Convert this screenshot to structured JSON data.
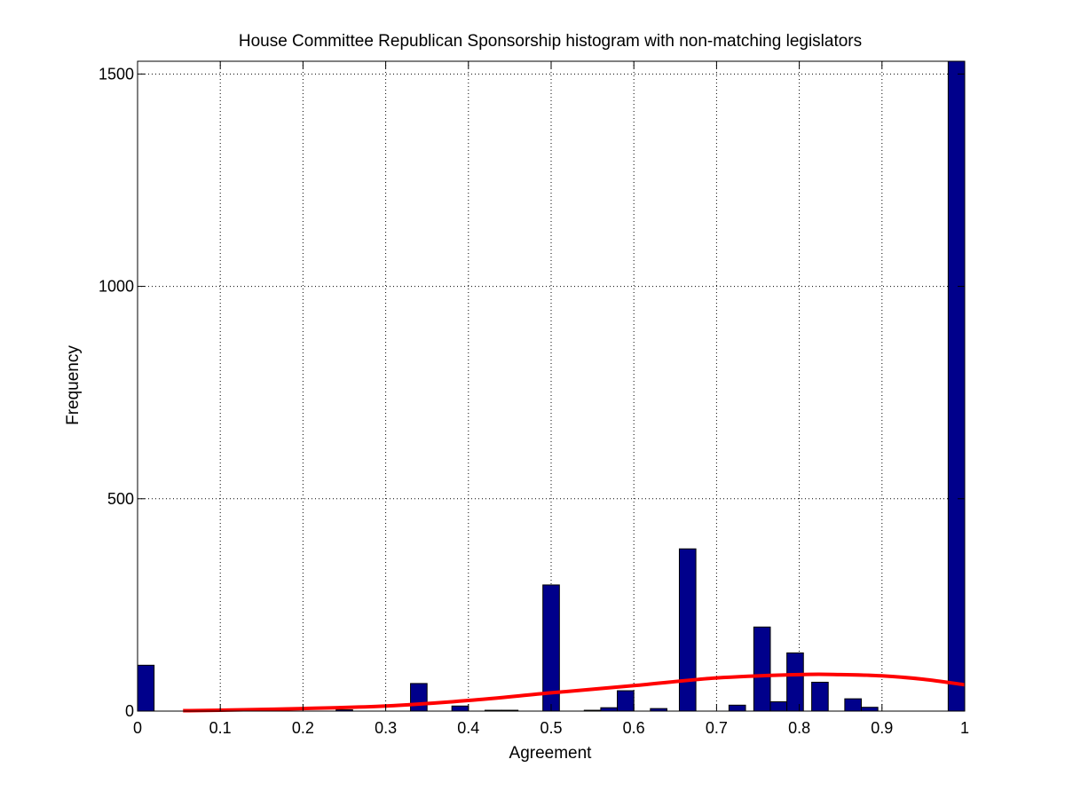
{
  "chart_data": {
    "type": "bar",
    "title": "House Committee Republican Sponsorship histogram with non-matching legislators",
    "xlabel": "Agreement",
    "ylabel": "Frequency",
    "xlim": [
      0,
      1
    ],
    "ylim": [
      0,
      1530
    ],
    "xticks": [
      0,
      0.1,
      0.2,
      0.3,
      0.4,
      0.5,
      0.6,
      0.7,
      0.8,
      0.9,
      1
    ],
    "xtick_labels": [
      "0",
      "0.1",
      "0.2",
      "0.3",
      "0.4",
      "0.5",
      "0.6",
      "0.7",
      "0.8",
      "0.9",
      "1"
    ],
    "yticks": [
      0,
      500,
      1000,
      1500
    ],
    "ytick_labels": [
      "0",
      "500",
      "1000",
      "1500"
    ],
    "grid": true,
    "bar_color": "#00008B",
    "bin_width": 0.02,
    "series": [
      {
        "kind": "bar",
        "x": [
          0.01,
          0.25,
          0.34,
          0.39,
          0.43,
          0.45,
          0.5,
          0.55,
          0.57,
          0.59,
          0.63,
          0.665,
          0.725,
          0.755,
          0.775,
          0.795,
          0.825,
          0.865,
          0.885,
          0.99
        ],
        "values": [
          108,
          3,
          65,
          12,
          2,
          2,
          297,
          2,
          8,
          48,
          6,
          382,
          14,
          198,
          22,
          137,
          68,
          29,
          9,
          1530
        ]
      },
      {
        "kind": "line",
        "color": "#ff0000",
        "x": [
          0.055,
          0.1,
          0.2,
          0.3,
          0.4,
          0.5,
          0.6,
          0.7,
          0.8,
          0.85,
          0.9,
          0.95,
          1.0
        ],
        "values": [
          1,
          2,
          6,
          12,
          25,
          43,
          60,
          78,
          86,
          86,
          83,
          75,
          62
        ]
      }
    ]
  }
}
